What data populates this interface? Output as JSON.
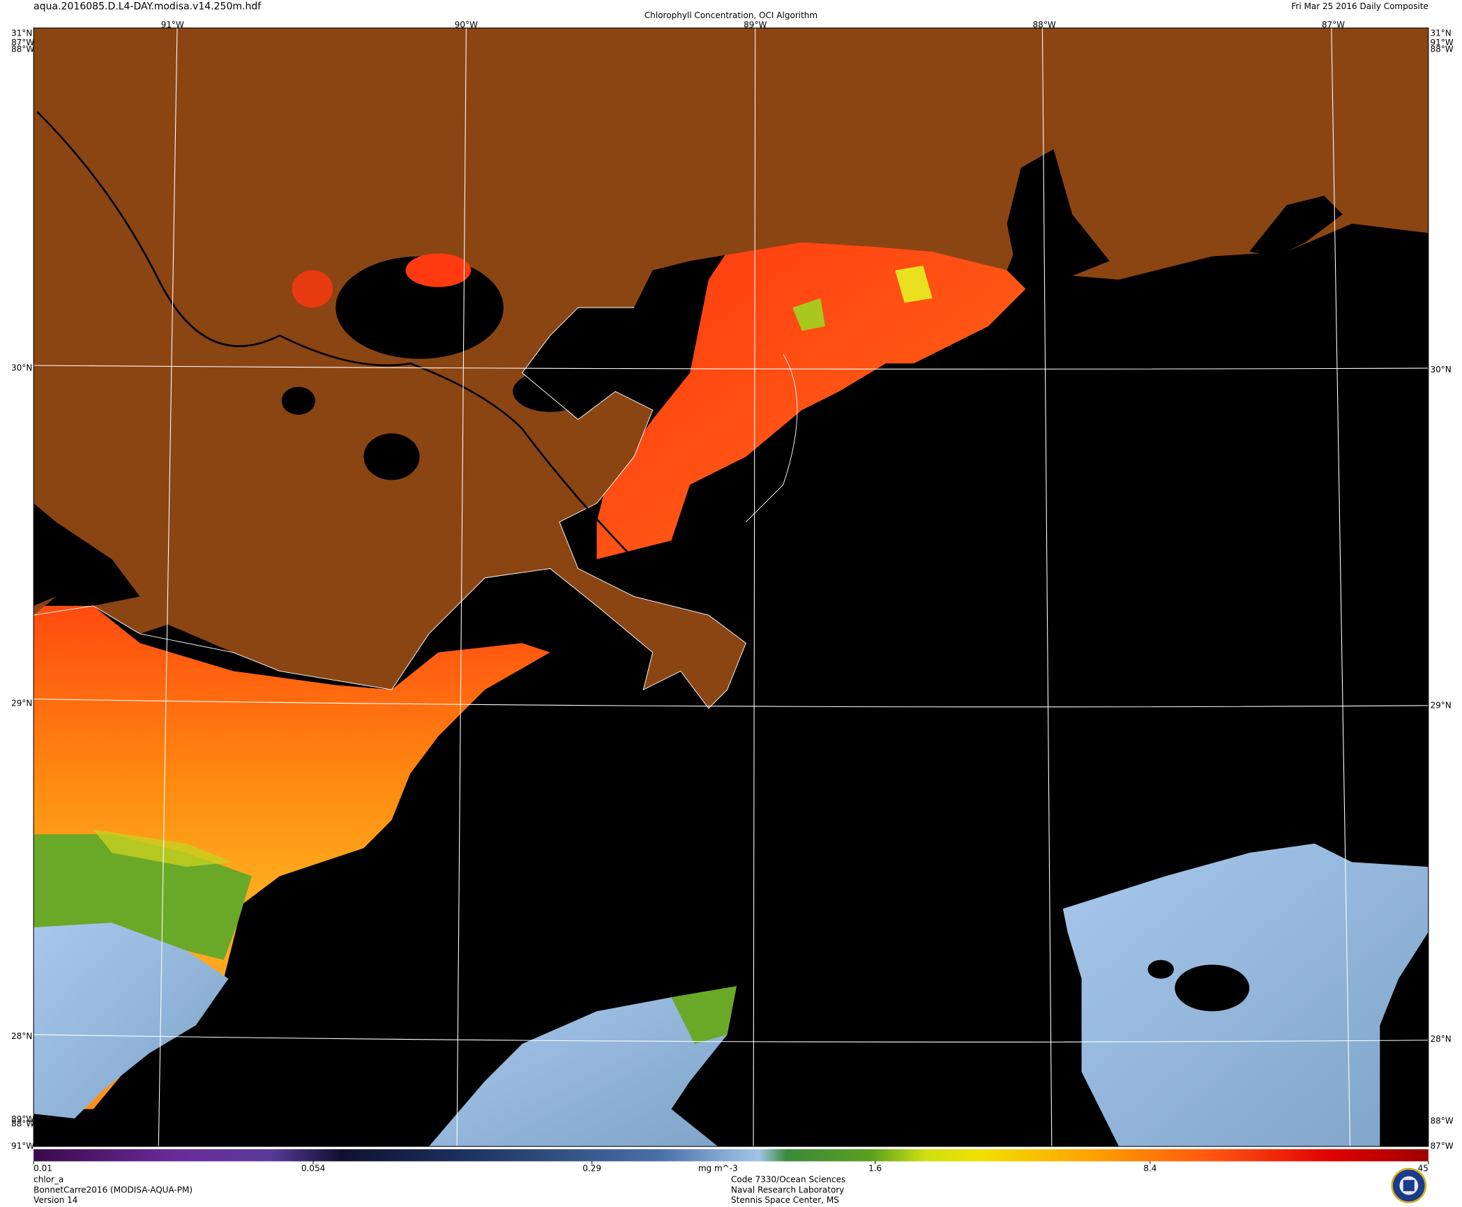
{
  "header": {
    "filename": "aqua.2016085.D.L4-DAY.modisa.v14.250m.hdf",
    "title": "Chlorophyll Concentration, OCI Algorithm",
    "date": "Fri Mar 25 2016 Daily Composite"
  },
  "map": {
    "top_labels": [
      "91°W",
      "90°W",
      "89°W",
      "88°W",
      "87°W"
    ],
    "left_labels": [
      "31°N",
      "30°N",
      "29°N",
      "28°N"
    ],
    "right_labels": [
      "31°N",
      "30°N",
      "29°N",
      "28°N"
    ],
    "corner_labels": {
      "top_left": [
        "87°W",
        "88°W"
      ],
      "top_right": [
        "91°W",
        "88°W"
      ],
      "bottom_left": [
        "89°W",
        "88°W",
        "91°W"
      ],
      "bottom_right": [
        "88°W",
        "87°W"
      ]
    }
  },
  "colorbar": {
    "unit": "mg m^-3",
    "scale": "log",
    "lim": [
      0.01,
      45
    ],
    "ticks": [
      0.01,
      0.054,
      0.29,
      1.6,
      8.4,
      45
    ]
  },
  "footer": {
    "left": [
      "chlor_a",
      "BonnetCarre2016 (MODISA-AQUA-PM)",
      "Version 14"
    ],
    "center": [
      "Code 7330/Ocean Sciences",
      "Naval Research Laboratory",
      "Stennis Space Center, MS"
    ]
  }
}
